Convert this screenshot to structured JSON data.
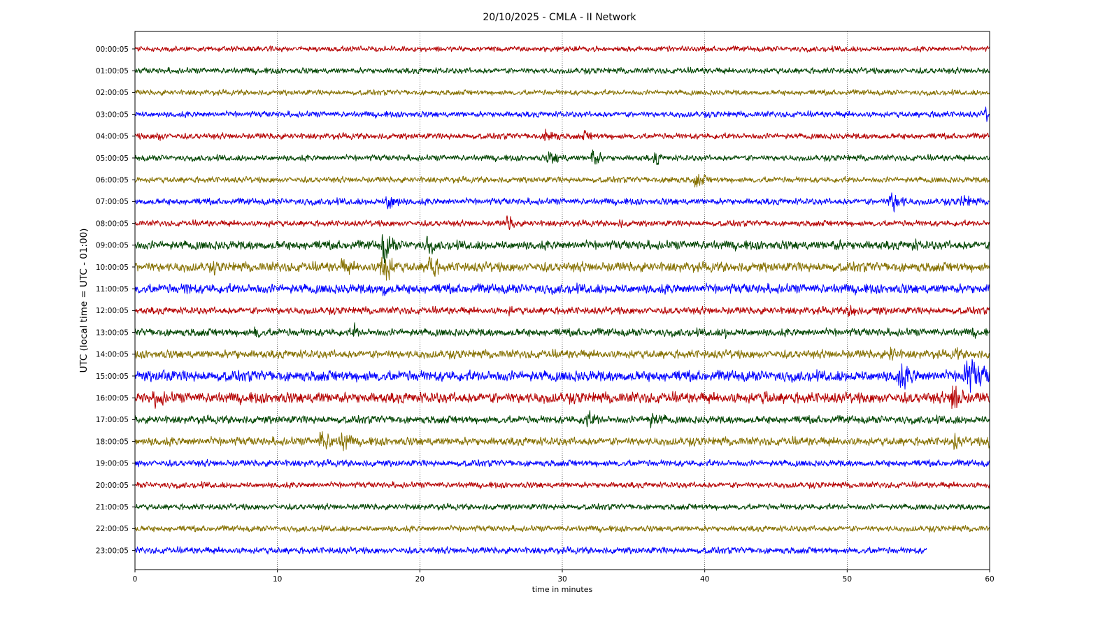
{
  "chart_data": {
    "type": "line",
    "title": "20/10/2025 - CMLA - II Network",
    "xlabel": "time in minutes",
    "ylabel": "UTC (local time = UTC - 01:00)",
    "xlim": [
      0,
      60
    ],
    "x_ticks": [
      "0",
      "10",
      "20",
      "30",
      "40",
      "50",
      "60"
    ],
    "x_tick_values": [
      0,
      10,
      20,
      30,
      40,
      50,
      60
    ],
    "grid": "vertical dotted lines at every 10 minutes",
    "legend": "none",
    "line_colors": [
      "#b50000",
      "#004400",
      "#857000",
      "#0000ff"
    ],
    "series": [
      {
        "label": "00:00:05",
        "end_minute": 60,
        "base_amplitude": 0.18,
        "events": []
      },
      {
        "label": "01:00:05",
        "end_minute": 60,
        "base_amplitude": 0.2,
        "events": []
      },
      {
        "label": "02:00:05",
        "end_minute": 60,
        "base_amplitude": 0.18,
        "events": []
      },
      {
        "label": "03:00:05",
        "end_minute": 60,
        "base_amplitude": 0.2,
        "events": [
          {
            "minute": 56.2,
            "amplitude": 0.45,
            "duration": 0.8
          },
          {
            "minute": 59.7,
            "amplitude": 0.6,
            "duration": 1.0
          }
        ]
      },
      {
        "label": "04:00:05",
        "end_minute": 60,
        "base_amplitude": 0.2,
        "events": [
          {
            "minute": 1.5,
            "amplitude": 0.45,
            "duration": 2.0
          },
          {
            "minute": 28.8,
            "amplitude": 0.7,
            "duration": 2.0
          },
          {
            "minute": 31.5,
            "amplitude": 0.4,
            "duration": 3.0
          }
        ]
      },
      {
        "label": "05:00:05",
        "end_minute": 60,
        "base_amplitude": 0.2,
        "events": [
          {
            "minute": 29.0,
            "amplitude": 0.55,
            "duration": 3.0
          },
          {
            "minute": 32.1,
            "amplitude": 0.9,
            "duration": 1.2
          },
          {
            "minute": 36.5,
            "amplitude": 0.8,
            "duration": 0.8
          }
        ]
      },
      {
        "label": "06:00:05",
        "end_minute": 60,
        "base_amplitude": 0.2,
        "events": [
          {
            "minute": 37.4,
            "amplitude": 0.5,
            "duration": 1.0
          },
          {
            "minute": 39.3,
            "amplitude": 0.65,
            "duration": 2.0
          }
        ]
      },
      {
        "label": "07:00:05",
        "end_minute": 60,
        "base_amplitude": 0.22,
        "events": [
          {
            "minute": 17.7,
            "amplitude": 0.85,
            "duration": 2.0
          },
          {
            "minute": 53.0,
            "amplitude": 1.0,
            "duration": 2.0
          },
          {
            "minute": 58.0,
            "amplitude": 0.55,
            "duration": 3.0
          }
        ]
      },
      {
        "label": "08:00:05",
        "end_minute": 60,
        "base_amplitude": 0.2,
        "events": [
          {
            "minute": 26.1,
            "amplitude": 0.65,
            "duration": 1.5
          },
          {
            "minute": 34.0,
            "amplitude": 0.35,
            "duration": 2.0
          },
          {
            "minute": 9.3,
            "amplitude": 0.4,
            "duration": 0.6
          }
        ]
      },
      {
        "label": "09:00:05",
        "end_minute": 60,
        "base_amplitude": 0.3,
        "events": [
          {
            "minute": 17.4,
            "amplitude": 1.4,
            "duration": 1.5
          },
          {
            "minute": 20.5,
            "amplitude": 0.9,
            "duration": 1.2
          },
          {
            "minute": 49.0,
            "amplitude": 0.45,
            "duration": 4.0
          },
          {
            "minute": 54.6,
            "amplitude": 0.55,
            "duration": 1.5
          }
        ]
      },
      {
        "label": "10:00:05",
        "end_minute": 60,
        "base_amplitude": 0.32,
        "events": [
          {
            "minute": 5.5,
            "amplitude": 0.55,
            "duration": 1.5
          },
          {
            "minute": 14.5,
            "amplitude": 0.6,
            "duration": 4.0
          },
          {
            "minute": 17.3,
            "amplitude": 1.7,
            "duration": 1.6
          },
          {
            "minute": 20.6,
            "amplitude": 1.3,
            "duration": 1.4
          }
        ]
      },
      {
        "label": "11:00:05",
        "end_minute": 60,
        "base_amplitude": 0.32,
        "events": [
          {
            "minute": 3.5,
            "amplitude": 0.55,
            "duration": 3.0
          },
          {
            "minute": 17.4,
            "amplitude": 0.8,
            "duration": 1.0
          }
        ]
      },
      {
        "label": "12:00:05",
        "end_minute": 60,
        "base_amplitude": 0.24,
        "events": [
          {
            "minute": 26.3,
            "amplitude": 0.45,
            "duration": 1.0
          },
          {
            "minute": 50.1,
            "amplitude": 0.75,
            "duration": 1.5
          },
          {
            "minute": 52.0,
            "amplitude": 0.4,
            "duration": 2.0
          }
        ]
      },
      {
        "label": "13:00:05",
        "end_minute": 60,
        "base_amplitude": 0.26,
        "events": [
          {
            "minute": 8.4,
            "amplitude": 0.65,
            "duration": 1.2
          },
          {
            "minute": 15.4,
            "amplitude": 0.85,
            "duration": 0.6
          },
          {
            "minute": 41.4,
            "amplitude": 0.5,
            "duration": 1.0
          },
          {
            "minute": 58.8,
            "amplitude": 0.45,
            "duration": 1.0
          }
        ]
      },
      {
        "label": "14:00:05",
        "end_minute": 60,
        "base_amplitude": 0.28,
        "events": [
          {
            "minute": 7.0,
            "amplitude": 0.4,
            "duration": 2.0
          },
          {
            "minute": 35.0,
            "amplitude": 0.45,
            "duration": 1.0
          },
          {
            "minute": 53.0,
            "amplitude": 0.7,
            "duration": 2.0
          },
          {
            "minute": 57.6,
            "amplitude": 0.6,
            "duration": 1.2
          }
        ]
      },
      {
        "label": "15:00:05",
        "end_minute": 60,
        "base_amplitude": 0.36,
        "events": [
          {
            "minute": 2.0,
            "amplitude": 0.6,
            "duration": 2.0
          },
          {
            "minute": 31.0,
            "amplitude": 0.5,
            "duration": 1.0
          },
          {
            "minute": 53.5,
            "amplitude": 1.1,
            "duration": 3.0
          },
          {
            "minute": 58.2,
            "amplitude": 1.5,
            "duration": 3.5
          }
        ]
      },
      {
        "label": "16:00:05",
        "end_minute": 60,
        "base_amplitude": 0.36,
        "events": [
          {
            "minute": 1.4,
            "amplitude": 0.8,
            "duration": 2.5
          },
          {
            "minute": 12.8,
            "amplitude": 0.55,
            "duration": 2.0
          },
          {
            "minute": 21.1,
            "amplitude": 0.5,
            "duration": 1.0
          },
          {
            "minute": 44.2,
            "amplitude": 0.65,
            "duration": 1.5
          },
          {
            "minute": 57.4,
            "amplitude": 1.8,
            "duration": 1.2
          }
        ]
      },
      {
        "label": "17:00:05",
        "end_minute": 60,
        "base_amplitude": 0.26,
        "events": [
          {
            "minute": 31.5,
            "amplitude": 0.7,
            "duration": 3.0
          },
          {
            "minute": 36.0,
            "amplitude": 0.65,
            "duration": 3.5
          },
          {
            "minute": 57.5,
            "amplitude": 0.5,
            "duration": 0.8
          }
        ]
      },
      {
        "label": "18:00:05",
        "end_minute": 60,
        "base_amplitude": 0.28,
        "events": [
          {
            "minute": 13.0,
            "amplitude": 0.9,
            "duration": 2.5
          },
          {
            "minute": 14.5,
            "amplitude": 1.0,
            "duration": 1.5
          },
          {
            "minute": 57.5,
            "amplitude": 0.7,
            "duration": 1.5
          },
          {
            "minute": 59.9,
            "amplitude": 0.8,
            "duration": 0.5
          }
        ]
      },
      {
        "label": "19:00:05",
        "end_minute": 60,
        "base_amplitude": 0.22,
        "events": [
          {
            "minute": 0.3,
            "amplitude": 0.45,
            "duration": 0.6
          }
        ]
      },
      {
        "label": "20:00:05",
        "end_minute": 60,
        "base_amplitude": 0.2,
        "events": []
      },
      {
        "label": "21:00:05",
        "end_minute": 60,
        "base_amplitude": 0.2,
        "events": []
      },
      {
        "label": "22:00:05",
        "end_minute": 60,
        "base_amplitude": 0.2,
        "events": [
          {
            "minute": 57.6,
            "amplitude": 0.35,
            "duration": 0.5
          }
        ]
      },
      {
        "label": "23:00:05",
        "end_minute": 55.6,
        "base_amplitude": 0.22,
        "events": []
      }
    ]
  }
}
